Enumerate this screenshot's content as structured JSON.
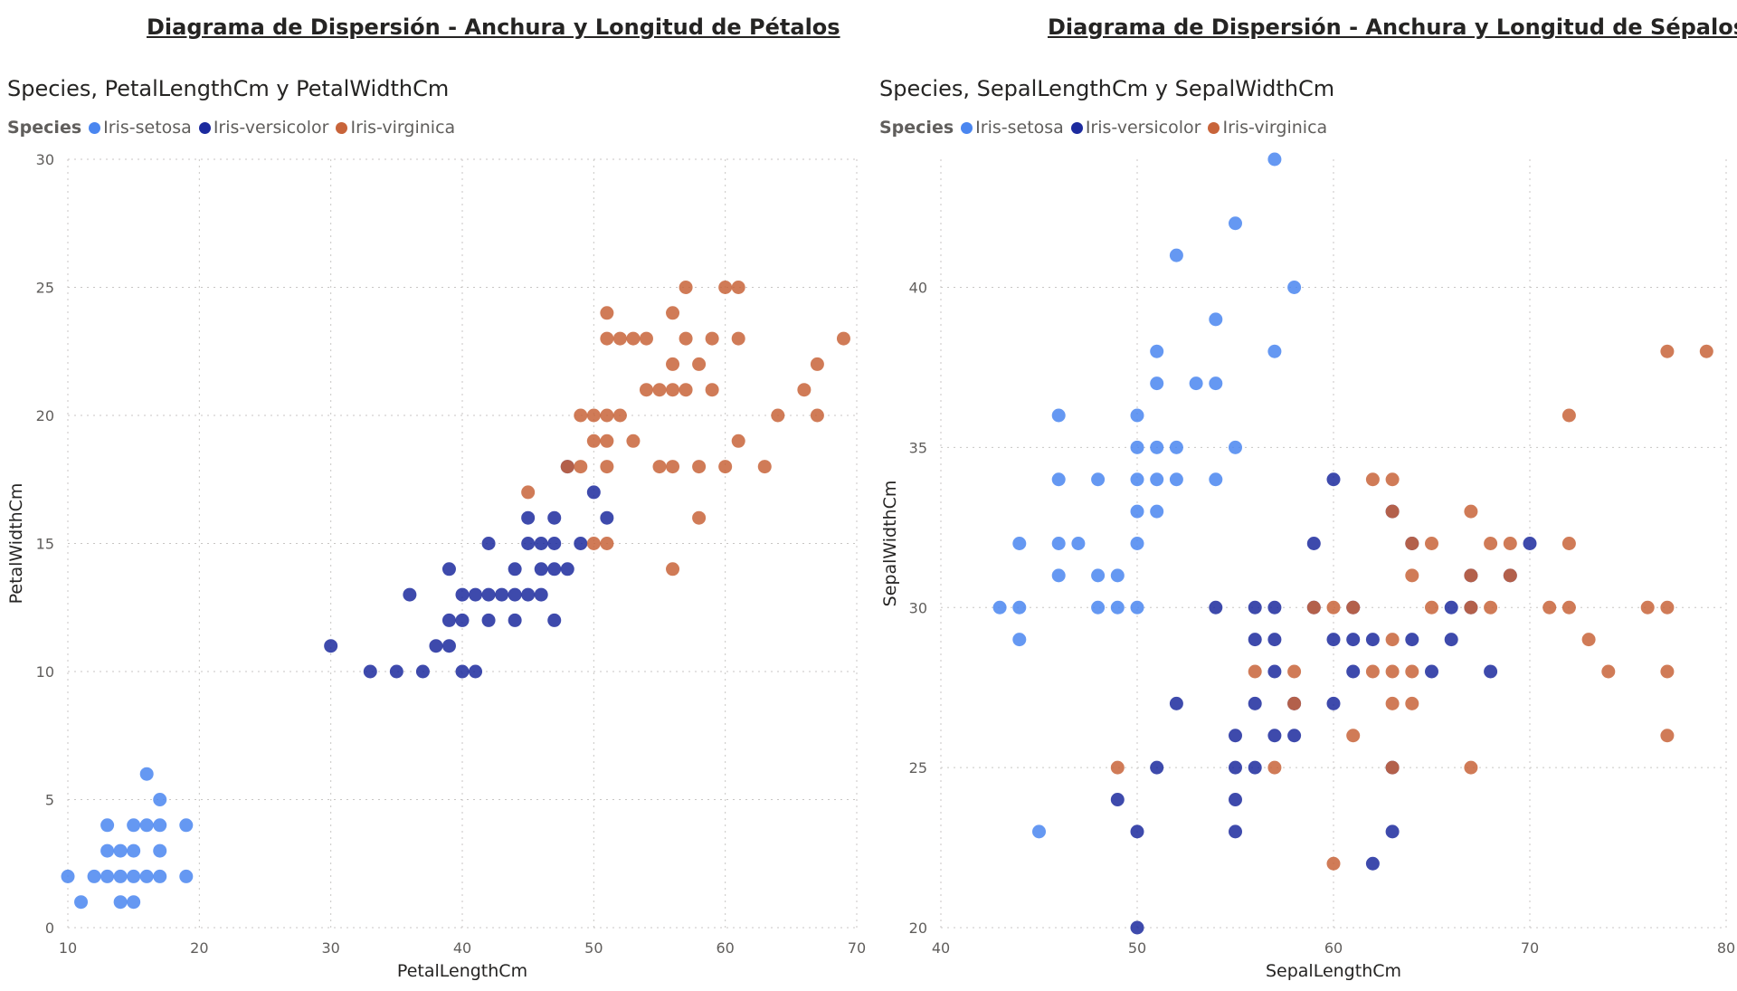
{
  "page": {
    "title_left": "Diagrama de Dispersión - Anchura y Longitud de Pétalos",
    "title_right": "Diagrama de Dispersión - Anchura y Longitud de Sépalos"
  },
  "colors": {
    "Iris-setosa": "#4a86f0",
    "Iris-versicolor": "#1c2a9e",
    "Iris-virginica": "#c8643a"
  },
  "chart_data": [
    {
      "type": "scatter",
      "title": "Species, PetalLengthCm y PetalWidthCm",
      "legend_title": "Species",
      "legend_position": "top-left",
      "grid": true,
      "xlabel": "PetalLengthCm",
      "ylabel": "PetalWidthCm",
      "xlim": [
        10,
        70
      ],
      "ylim": [
        0,
        30
      ],
      "xticks": [
        10,
        20,
        30,
        40,
        50,
        60,
        70
      ],
      "yticks": [
        0,
        5,
        10,
        15,
        20,
        25,
        30
      ],
      "series": [
        {
          "name": "Iris-setosa",
          "points": [
            [
              10,
              2
            ],
            [
              11,
              1
            ],
            [
              12,
              2
            ],
            [
              13,
              4
            ],
            [
              13,
              3
            ],
            [
              13,
              2
            ],
            [
              14,
              3
            ],
            [
              14,
              2
            ],
            [
              14,
              1
            ],
            [
              15,
              4
            ],
            [
              15,
              3
            ],
            [
              15,
              2
            ],
            [
              15,
              1
            ],
            [
              16,
              6
            ],
            [
              16,
              4
            ],
            [
              16,
              2
            ],
            [
              17,
              5
            ],
            [
              17,
              4
            ],
            [
              17,
              3
            ],
            [
              17,
              2
            ],
            [
              19,
              4
            ],
            [
              19,
              2
            ]
          ]
        },
        {
          "name": "Iris-versicolor",
          "points": [
            [
              30,
              11
            ],
            [
              33,
              10
            ],
            [
              35,
              10
            ],
            [
              36,
              13
            ],
            [
              37,
              10
            ],
            [
              38,
              11
            ],
            [
              39,
              14
            ],
            [
              39,
              12
            ],
            [
              39,
              11
            ],
            [
              40,
              13
            ],
            [
              40,
              12
            ],
            [
              40,
              10
            ],
            [
              41,
              13
            ],
            [
              41,
              10
            ],
            [
              42,
              15
            ],
            [
              42,
              13
            ],
            [
              42,
              12
            ],
            [
              43,
              13
            ],
            [
              44,
              14
            ],
            [
              44,
              13
            ],
            [
              44,
              12
            ],
            [
              45,
              16
            ],
            [
              45,
              15
            ],
            [
              45,
              13
            ],
            [
              46,
              15
            ],
            [
              46,
              14
            ],
            [
              46,
              13
            ],
            [
              47,
              16
            ],
            [
              47,
              15
            ],
            [
              47,
              14
            ],
            [
              47,
              12
            ],
            [
              48,
              18
            ],
            [
              48,
              14
            ],
            [
              49,
              15
            ],
            [
              50,
              17
            ],
            [
              51,
              16
            ]
          ]
        },
        {
          "name": "Iris-virginica",
          "points": [
            [
              45,
              17
            ],
            [
              48,
              18
            ],
            [
              49,
              18
            ],
            [
              49,
              20
            ],
            [
              50,
              15
            ],
            [
              50,
              19
            ],
            [
              50,
              20
            ],
            [
              51,
              15
            ],
            [
              51,
              18
            ],
            [
              51,
              19
            ],
            [
              51,
              20
            ],
            [
              51,
              23
            ],
            [
              51,
              24
            ],
            [
              52,
              20
            ],
            [
              52,
              23
            ],
            [
              53,
              19
            ],
            [
              53,
              23
            ],
            [
              54,
              21
            ],
            [
              54,
              23
            ],
            [
              55,
              18
            ],
            [
              55,
              21
            ],
            [
              56,
              14
            ],
            [
              56,
              18
            ],
            [
              56,
              21
            ],
            [
              56,
              22
            ],
            [
              56,
              24
            ],
            [
              57,
              21
            ],
            [
              57,
              23
            ],
            [
              57,
              25
            ],
            [
              58,
              16
            ],
            [
              58,
              18
            ],
            [
              58,
              22
            ],
            [
              59,
              21
            ],
            [
              59,
              23
            ],
            [
              60,
              18
            ],
            [
              60,
              25
            ],
            [
              61,
              19
            ],
            [
              61,
              23
            ],
            [
              61,
              25
            ],
            [
              63,
              18
            ],
            [
              64,
              20
            ],
            [
              66,
              21
            ],
            [
              67,
              20
            ],
            [
              67,
              22
            ],
            [
              69,
              23
            ]
          ]
        }
      ]
    },
    {
      "type": "scatter",
      "title": "Species, SepalLengthCm y SepalWidthCm",
      "legend_title": "Species",
      "legend_position": "top-left",
      "grid": true,
      "xlabel": "SepalLengthCm",
      "ylabel": "SepalWidthCm",
      "xlim": [
        40,
        80
      ],
      "ylim": [
        20,
        44
      ],
      "xticks": [
        40,
        50,
        60,
        70,
        80
      ],
      "yticks": [
        20,
        25,
        30,
        35,
        40
      ],
      "series": [
        {
          "name": "Iris-setosa",
          "points": [
            [
              43,
              30
            ],
            [
              44,
              32
            ],
            [
              44,
              30
            ],
            [
              44,
              29
            ],
            [
              45,
              23
            ],
            [
              46,
              36
            ],
            [
              46,
              34
            ],
            [
              46,
              32
            ],
            [
              46,
              31
            ],
            [
              47,
              32
            ],
            [
              48,
              34
            ],
            [
              48,
              31
            ],
            [
              48,
              30
            ],
            [
              49,
              31
            ],
            [
              49,
              30
            ],
            [
              50,
              36
            ],
            [
              50,
              35
            ],
            [
              50,
              34
            ],
            [
              50,
              33
            ],
            [
              50,
              32
            ],
            [
              50,
              30
            ],
            [
              51,
              38
            ],
            [
              51,
              37
            ],
            [
              51,
              35
            ],
            [
              51,
              34
            ],
            [
              51,
              33
            ],
            [
              52,
              41
            ],
            [
              52,
              35
            ],
            [
              52,
              34
            ],
            [
              53,
              37
            ],
            [
              54,
              39
            ],
            [
              54,
              37
            ],
            [
              54,
              34
            ],
            [
              55,
              42
            ],
            [
              55,
              35
            ],
            [
              57,
              44
            ],
            [
              57,
              38
            ],
            [
              58,
              40
            ]
          ]
        },
        {
          "name": "Iris-versicolor",
          "points": [
            [
              49,
              24
            ],
            [
              50,
              23
            ],
            [
              50,
              20
            ],
            [
              51,
              25
            ],
            [
              52,
              27
            ],
            [
              54,
              30
            ],
            [
              55,
              26
            ],
            [
              55,
              25
            ],
            [
              55,
              24
            ],
            [
              55,
              23
            ],
            [
              56,
              30
            ],
            [
              56,
              29
            ],
            [
              56,
              27
            ],
            [
              56,
              25
            ],
            [
              57,
              30
            ],
            [
              57,
              29
            ],
            [
              57,
              28
            ],
            [
              57,
              26
            ],
            [
              58,
              27
            ],
            [
              58,
              26
            ],
            [
              59,
              32
            ],
            [
              59,
              30
            ],
            [
              60,
              34
            ],
            [
              60,
              29
            ],
            [
              60,
              27
            ],
            [
              61,
              30
            ],
            [
              61,
              29
            ],
            [
              61,
              28
            ],
            [
              62,
              29
            ],
            [
              62,
              22
            ],
            [
              63,
              33
            ],
            [
              63,
              25
            ],
            [
              63,
              23
            ],
            [
              64,
              32
            ],
            [
              64,
              29
            ],
            [
              65,
              28
            ],
            [
              66,
              30
            ],
            [
              66,
              29
            ],
            [
              67,
              31
            ],
            [
              67,
              30
            ],
            [
              68,
              28
            ],
            [
              69,
              31
            ],
            [
              70,
              32
            ]
          ]
        },
        {
          "name": "Iris-virginica",
          "points": [
            [
              49,
              25
            ],
            [
              56,
              28
            ],
            [
              57,
              25
            ],
            [
              58,
              28
            ],
            [
              58,
              27
            ],
            [
              59,
              30
            ],
            [
              60,
              30
            ],
            [
              60,
              22
            ],
            [
              61,
              30
            ],
            [
              61,
              26
            ],
            [
              62,
              34
            ],
            [
              62,
              28
            ],
            [
              63,
              34
            ],
            [
              63,
              33
            ],
            [
              63,
              29
            ],
            [
              63,
              28
            ],
            [
              63,
              27
            ],
            [
              63,
              25
            ],
            [
              64,
              32
            ],
            [
              64,
              31
            ],
            [
              64,
              28
            ],
            [
              64,
              27
            ],
            [
              65,
              32
            ],
            [
              65,
              30
            ],
            [
              67,
              33
            ],
            [
              67,
              31
            ],
            [
              67,
              30
            ],
            [
              67,
              25
            ],
            [
              68,
              32
            ],
            [
              68,
              30
            ],
            [
              69,
              32
            ],
            [
              69,
              31
            ],
            [
              71,
              30
            ],
            [
              72,
              36
            ],
            [
              72,
              32
            ],
            [
              72,
              30
            ],
            [
              73,
              29
            ],
            [
              74,
              28
            ],
            [
              76,
              30
            ],
            [
              77,
              38
            ],
            [
              77,
              30
            ],
            [
              77,
              28
            ],
            [
              77,
              26
            ],
            [
              79,
              38
            ]
          ]
        }
      ]
    }
  ]
}
